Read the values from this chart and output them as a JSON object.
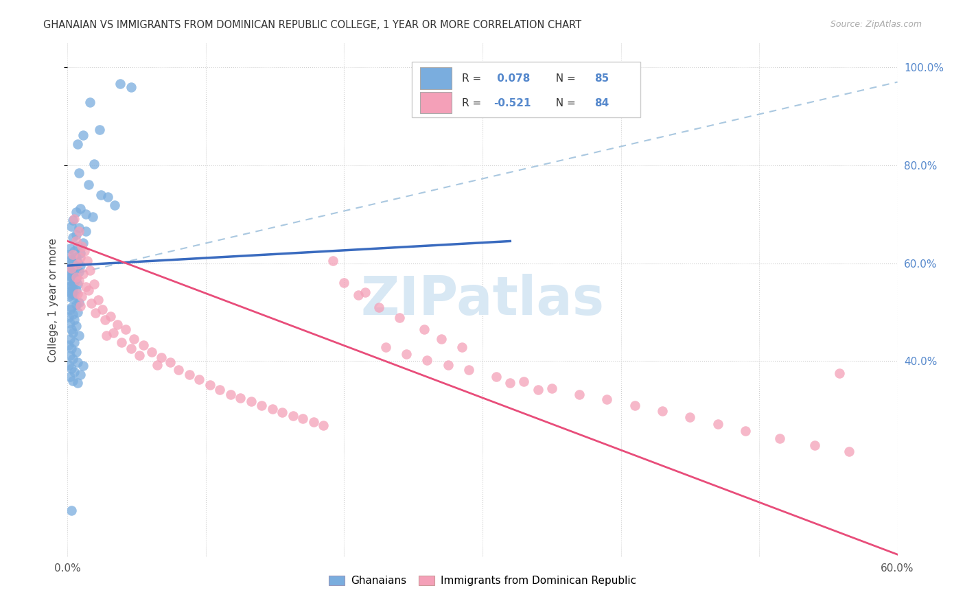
{
  "title": "GHANAIAN VS IMMIGRANTS FROM DOMINICAN REPUBLIC COLLEGE, 1 YEAR OR MORE CORRELATION CHART",
  "source": "Source: ZipAtlas.com",
  "ylabel": "College, 1 year or more",
  "xlim": [
    0.0,
    0.6
  ],
  "ylim": [
    0.0,
    1.05
  ],
  "ytick_vals": [
    0.4,
    0.6,
    0.8,
    1.0
  ],
  "ytick_labels": [
    "40.0%",
    "60.0%",
    "80.0%",
    "100.0%"
  ],
  "xtick_vals": [
    0.0,
    0.1,
    0.2,
    0.3,
    0.4,
    0.5,
    0.6
  ],
  "xtick_labels": [
    "0.0%",
    "",
    "",
    "",
    "",
    "",
    "60.0%"
  ],
  "r1": "0.078",
  "n1": "85",
  "r2": "-0.521",
  "n2": "84",
  "color_blue": "#7aadde",
  "color_pink": "#f4a0b8",
  "color_line_blue": "#3a6bbf",
  "color_line_pink": "#e84d7a",
  "color_dashed": "#aac8e0",
  "color_grid": "#d0d0d0",
  "color_title": "#333333",
  "color_source": "#aaaaaa",
  "color_watermark": "#d8e8f4",
  "color_right_ticks": "#5588cc",
  "background": "#ffffff",
  "blue_line_x": [
    0.0,
    0.32
  ],
  "blue_line_y": [
    0.595,
    0.645
  ],
  "pink_line_x": [
    0.0,
    0.6
  ],
  "pink_line_y": [
    0.645,
    0.005
  ],
  "dash_line_x": [
    0.0,
    0.6
  ],
  "dash_line_y": [
    0.575,
    0.97
  ],
  "blue_pts_x": [
    0.038,
    0.046,
    0.016,
    0.023,
    0.011,
    0.007,
    0.019,
    0.008,
    0.015,
    0.024,
    0.029,
    0.034,
    0.009,
    0.006,
    0.013,
    0.018,
    0.004,
    0.003,
    0.008,
    0.013,
    0.006,
    0.004,
    0.011,
    0.007,
    0.002,
    0.005,
    0.009,
    0.001,
    0.006,
    0.003,
    0.004,
    0.007,
    0.002,
    0.009,
    0.005,
    0.003,
    0.006,
    0.002,
    0.008,
    0.004,
    0.001,
    0.003,
    0.006,
    0.002,
    0.005,
    0.007,
    0.003,
    0.001,
    0.004,
    0.006,
    0.002,
    0.003,
    0.005,
    0.001,
    0.004,
    0.008,
    0.006,
    0.003,
    0.002,
    0.007,
    0.004,
    0.001,
    0.005,
    0.002,
    0.006,
    0.003,
    0.004,
    0.008,
    0.002,
    0.005,
    0.001,
    0.003,
    0.006,
    0.002,
    0.004,
    0.007,
    0.001,
    0.003,
    0.005,
    0.009,
    0.002,
    0.004,
    0.007,
    0.011,
    0.003
  ],
  "blue_pts_y": [
    0.966,
    0.96,
    0.928,
    0.872,
    0.862,
    0.843,
    0.802,
    0.785,
    0.76,
    0.74,
    0.735,
    0.718,
    0.712,
    0.705,
    0.7,
    0.695,
    0.688,
    0.675,
    0.672,
    0.665,
    0.658,
    0.652,
    0.642,
    0.635,
    0.63,
    0.625,
    0.62,
    0.617,
    0.612,
    0.608,
    0.605,
    0.602,
    0.598,
    0.595,
    0.592,
    0.59,
    0.588,
    0.585,
    0.582,
    0.578,
    0.575,
    0.572,
    0.568,
    0.565,
    0.562,
    0.558,
    0.555,
    0.552,
    0.548,
    0.545,
    0.542,
    0.538,
    0.535,
    0.532,
    0.528,
    0.52,
    0.515,
    0.51,
    0.505,
    0.5,
    0.495,
    0.49,
    0.485,
    0.478,
    0.472,
    0.465,
    0.458,
    0.452,
    0.445,
    0.438,
    0.432,
    0.425,
    0.418,
    0.412,
    0.405,
    0.398,
    0.392,
    0.385,
    0.378,
    0.372,
    0.368,
    0.36,
    0.355,
    0.39,
    0.095
  ],
  "pink_pts_x": [
    0.005,
    0.008,
    0.006,
    0.01,
    0.012,
    0.004,
    0.009,
    0.014,
    0.007,
    0.003,
    0.016,
    0.011,
    0.006,
    0.008,
    0.019,
    0.013,
    0.015,
    0.007,
    0.01,
    0.022,
    0.017,
    0.009,
    0.025,
    0.02,
    0.031,
    0.027,
    0.036,
    0.042,
    0.033,
    0.028,
    0.048,
    0.039,
    0.055,
    0.046,
    0.061,
    0.052,
    0.068,
    0.074,
    0.065,
    0.08,
    0.088,
    0.095,
    0.103,
    0.11,
    0.118,
    0.125,
    0.133,
    0.14,
    0.148,
    0.155,
    0.163,
    0.17,
    0.178,
    0.185,
    0.2,
    0.215,
    0.23,
    0.245,
    0.26,
    0.275,
    0.29,
    0.31,
    0.33,
    0.35,
    0.37,
    0.39,
    0.41,
    0.43,
    0.45,
    0.47,
    0.49,
    0.515,
    0.54,
    0.565,
    0.192,
    0.21,
    0.225,
    0.24,
    0.258,
    0.27,
    0.285,
    0.32,
    0.34,
    0.558
  ],
  "pink_pts_y": [
    0.69,
    0.665,
    0.645,
    0.635,
    0.625,
    0.618,
    0.612,
    0.605,
    0.598,
    0.59,
    0.585,
    0.578,
    0.572,
    0.565,
    0.558,
    0.552,
    0.545,
    0.538,
    0.532,
    0.525,
    0.518,
    0.512,
    0.505,
    0.498,
    0.492,
    0.485,
    0.475,
    0.465,
    0.458,
    0.452,
    0.445,
    0.438,
    0.432,
    0.425,
    0.418,
    0.412,
    0.408,
    0.398,
    0.392,
    0.382,
    0.372,
    0.362,
    0.352,
    0.342,
    0.332,
    0.325,
    0.318,
    0.31,
    0.302,
    0.295,
    0.288,
    0.282,
    0.275,
    0.268,
    0.56,
    0.54,
    0.428,
    0.415,
    0.402,
    0.392,
    0.382,
    0.368,
    0.358,
    0.345,
    0.332,
    0.322,
    0.31,
    0.298,
    0.285,
    0.272,
    0.258,
    0.242,
    0.228,
    0.215,
    0.605,
    0.535,
    0.51,
    0.488,
    0.465,
    0.445,
    0.428,
    0.355,
    0.342,
    0.375
  ]
}
